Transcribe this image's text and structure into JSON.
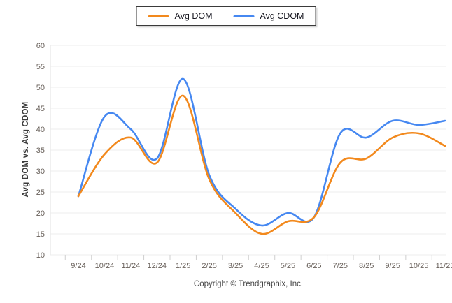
{
  "chart": {
    "legend": {
      "items": [
        {
          "label": "Avg DOM",
          "color": "#F2891D"
        },
        {
          "label": "Avg CDOM",
          "color": "#4688F1"
        }
      ]
    },
    "ylabel": "Avg DOM vs. Avg CDOM",
    "footer": "Copyright © Trendgraphix, Inc."
  },
  "chart_data": {
    "type": "line",
    "title": "",
    "xlabel": "",
    "ylabel": "Avg DOM vs. Avg CDOM",
    "categories": [
      "9/24",
      "10/24",
      "11/24",
      "12/24",
      "1/25",
      "2/25",
      "3/25",
      "4/25",
      "5/25",
      "6/25",
      "7/25",
      "8/25",
      "9/25",
      "10/25",
      "11/25"
    ],
    "series": [
      {
        "name": "Avg CDOM",
        "color": "#4688F1",
        "values": [
          24,
          43,
          40,
          33,
          52,
          29,
          21,
          17,
          20,
          19,
          39,
          38,
          42,
          41,
          42
        ]
      },
      {
        "name": "Avg DOM",
        "color": "#F2891D",
        "values": [
          24,
          34,
          38,
          32,
          48,
          28,
          20,
          15,
          18,
          19,
          32,
          33,
          38,
          39,
          36
        ]
      }
    ],
    "ylim": [
      10,
      60
    ],
    "ytick_step": 5,
    "grid": "horizontal",
    "legend_position": "top",
    "line_smoothing": "spline",
    "colors": {
      "grid": "#ececec",
      "tick_text": "#68605a",
      "axis_line": "#e0e0e0",
      "tick_mark": "#cfcfcf"
    }
  }
}
